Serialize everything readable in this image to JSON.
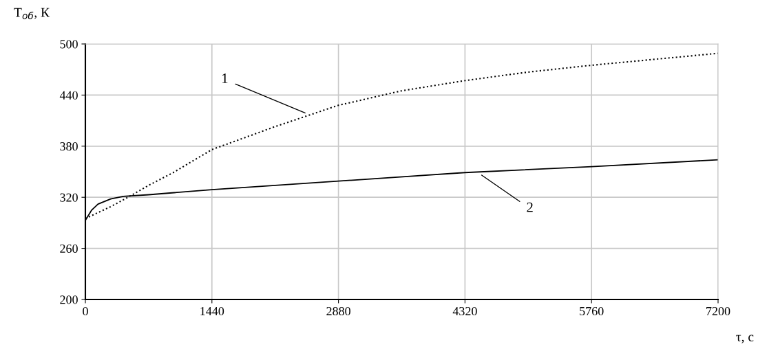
{
  "chart_data": {
    "type": "line",
    "xlabel": "τ, с",
    "ylabel": "T$_{об}$, К",
    "xlim": [
      0,
      7200
    ],
    "xticks": [
      0,
      1440,
      2880,
      4320,
      5760,
      7200
    ],
    "ylim": [
      200,
      500
    ],
    "yticks": [
      200,
      260,
      320,
      380,
      440,
      500
    ],
    "grid": true,
    "legend": false,
    "marker": "none",
    "series": [
      {
        "color": "#000000",
        "line_style": "dotted",
        "x": [
          0,
          144,
          288,
          432,
          720,
          1000,
          1440,
          2160,
          2880,
          3600,
          4320,
          5040,
          5760,
          6480,
          7200
        ],
        "values": [
          295,
          302,
          309,
          317,
          334,
          349,
          376,
          403,
          428,
          445,
          457,
          467,
          475,
          482,
          489
        ]
      },
      {
        "color": "#000000",
        "line_style": "solid",
        "x": [
          0,
          72,
          144,
          288,
          432,
          720,
          1440,
          2880,
          4320,
          5760,
          7200
        ],
        "values": [
          293,
          305,
          312,
          318,
          321,
          323,
          329,
          339,
          349,
          356,
          364
        ]
      }
    ],
    "annotations": [
      {
        "text": "1",
        "x": 2500,
        "y": 419
      },
      {
        "text": "2",
        "x": 4510,
        "y": 346
      }
    ]
  }
}
